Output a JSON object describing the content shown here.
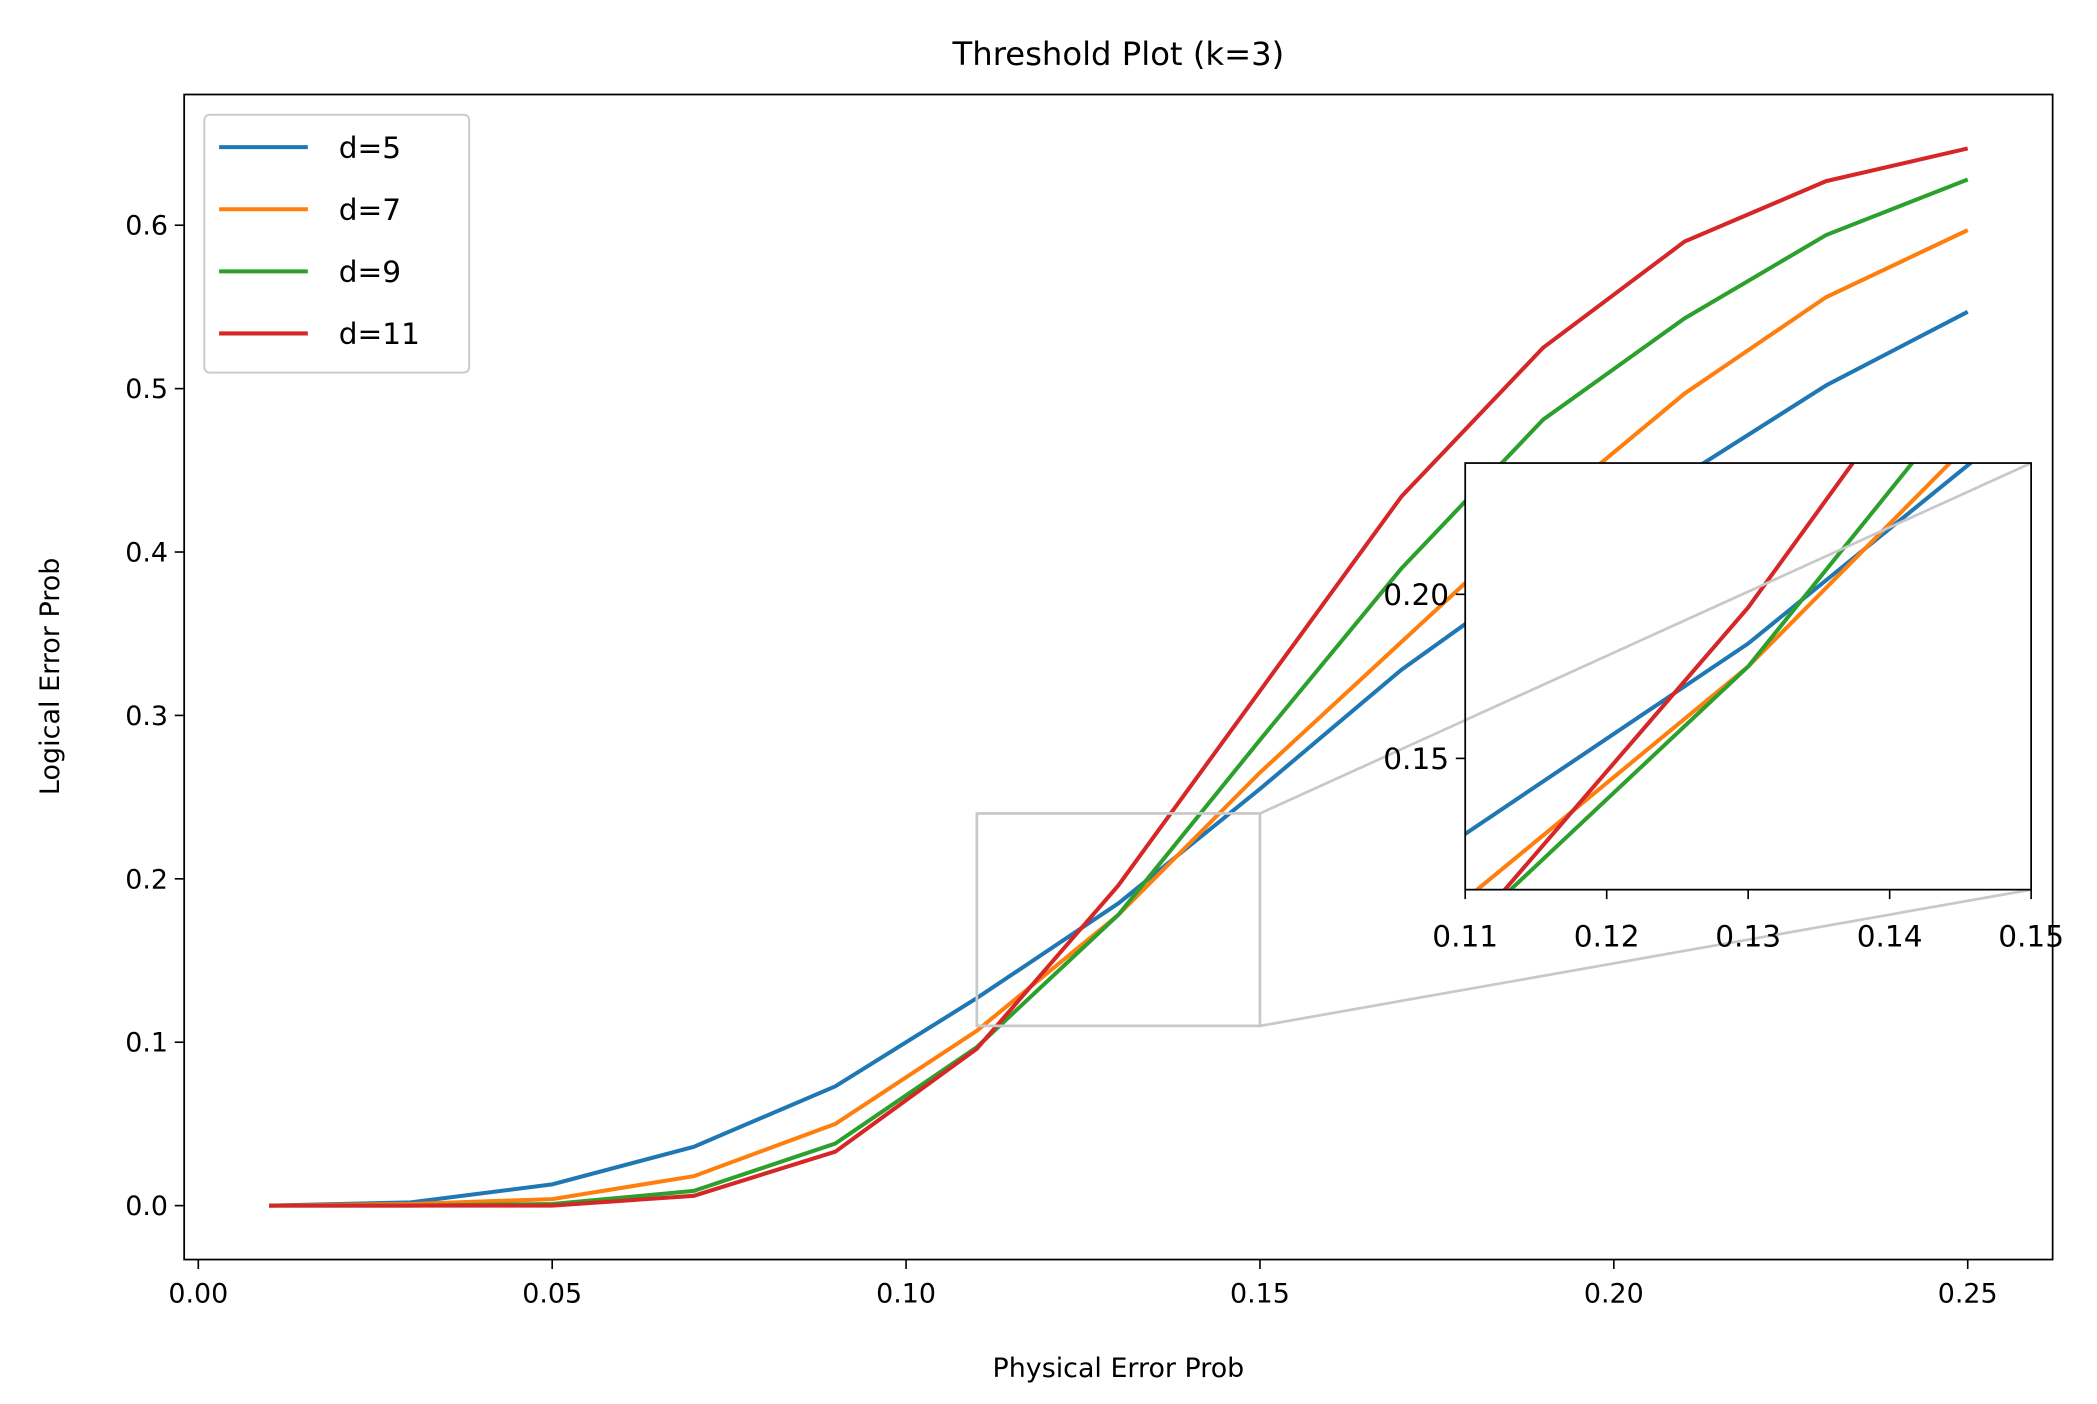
{
  "chart_data": {
    "type": "line",
    "title": "Threshold Plot (k=3)",
    "xlabel": "Physical Error Prob",
    "ylabel": "Logical Error Prob",
    "xlim": [
      -0.002,
      0.262
    ],
    "ylim": [
      -0.033,
      0.68
    ],
    "xticks": [
      "0.00",
      "0.05",
      "0.10",
      "0.15",
      "0.20",
      "0.25"
    ],
    "yticks": [
      "0.0",
      "0.1",
      "0.2",
      "0.3",
      "0.4",
      "0.5",
      "0.6"
    ],
    "grid": false,
    "legend": "upper-left",
    "x": [
      0.01,
      0.03,
      0.05,
      0.07,
      0.09,
      0.11,
      0.13,
      0.15,
      0.17,
      0.19,
      0.21,
      0.23,
      0.25
    ],
    "series": [
      {
        "name": "d=5",
        "color": "#1f77b4",
        "values": [
          0.0,
          0.002,
          0.013,
          0.036,
          0.073,
          0.127,
          0.185,
          0.255,
          0.328,
          0.39,
          0.447,
          0.502,
          0.547
        ]
      },
      {
        "name": "d=7",
        "color": "#ff7f0e",
        "values": [
          0.0,
          0.001,
          0.004,
          0.018,
          0.05,
          0.107,
          0.178,
          0.265,
          0.345,
          0.425,
          0.497,
          0.556,
          0.597
        ]
      },
      {
        "name": "d=9",
        "color": "#2ca02c",
        "values": [
          0.0,
          0.0,
          0.001,
          0.009,
          0.038,
          0.097,
          0.178,
          0.285,
          0.39,
          0.481,
          0.543,
          0.594,
          0.628
        ]
      },
      {
        "name": "d=11",
        "color": "#d62728",
        "values": [
          0.0,
          0.0,
          0.0,
          0.006,
          0.033,
          0.096,
          0.196,
          0.315,
          0.434,
          0.525,
          0.59,
          0.627,
          0.647
        ]
      }
    ],
    "inset": {
      "xlim": [
        0.11,
        0.15
      ],
      "ylim": [
        0.11,
        0.24
      ],
      "xticks": [
        "0.11",
        "0.12",
        "0.13",
        "0.14",
        "0.15"
      ],
      "yticks": [
        "0.15",
        "0.20"
      ]
    }
  }
}
